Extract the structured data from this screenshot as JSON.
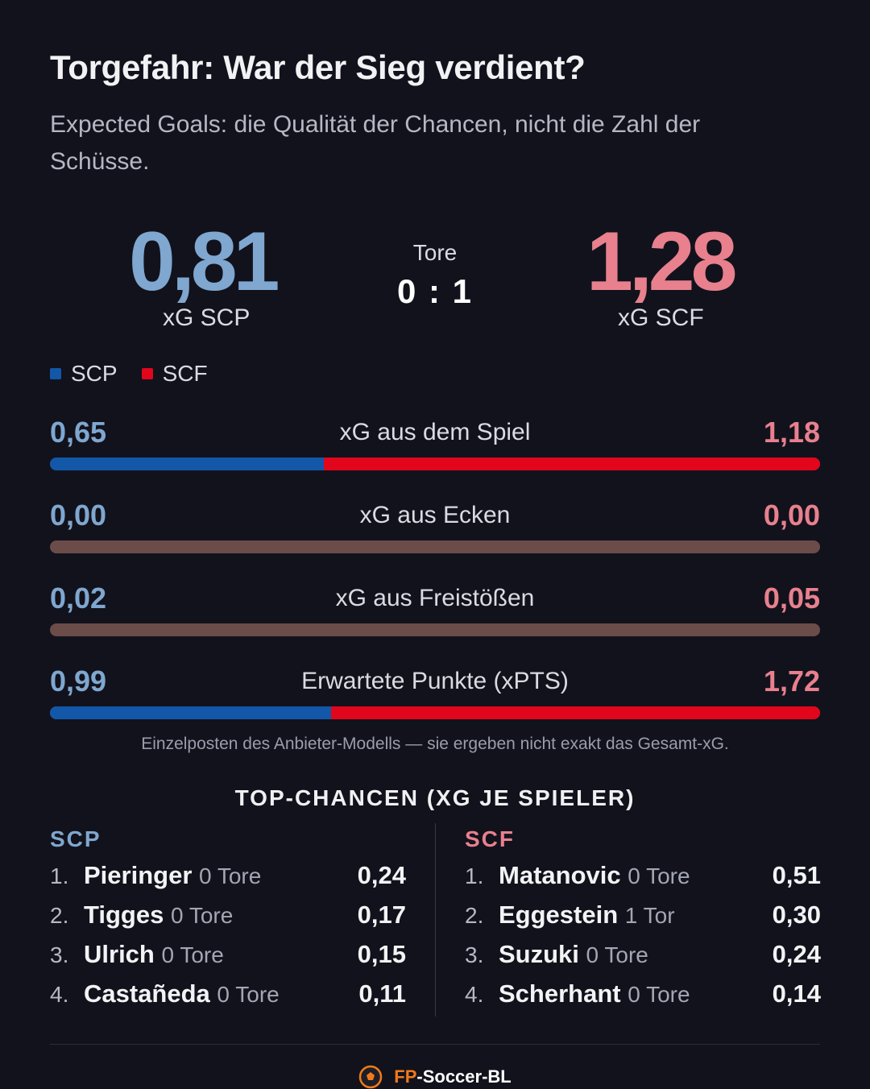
{
  "header": {
    "title": "Torgefahr: War der Sieg verdient?",
    "subtitle": "Expected Goals: die Qualität der Chancen, nicht die Zahl der Schüsse."
  },
  "summary": {
    "home_xg": "0,81",
    "home_label": "xG SCP",
    "away_xg": "1,28",
    "away_label": "xG SCF",
    "score_label": "Tore",
    "score": "0 : 1"
  },
  "legend": [
    {
      "team": "SCP",
      "color": "#1357a8"
    },
    {
      "team": "SCF",
      "color": "#e1061c"
    }
  ],
  "colors": {
    "home": "#1357a8",
    "away": "#e1061c",
    "home_text": "#7fa7cf",
    "away_text": "#e8808e",
    "neutral_bar": "#6b4c49",
    "background": "#12121c"
  },
  "metrics": [
    {
      "label": "xG aus dem Spiel",
      "home": "0,65",
      "away": "1,18",
      "home_val": 0.65,
      "away_val": 1.18
    },
    {
      "label": "xG aus Ecken",
      "home": "0,00",
      "away": "0,00",
      "home_val": 0.0,
      "away_val": 0.0
    },
    {
      "label": "xG aus Freistößen",
      "home": "0,02",
      "away": "0,05",
      "home_val": 0.02,
      "away_val": 0.05,
      "neutral": true
    },
    {
      "label": "Erwartete Punkte (xPTS)",
      "home": "0,99",
      "away": "1,72",
      "home_val": 0.99,
      "away_val": 1.72
    }
  ],
  "footnote": "Einzelposten des Anbieter-Modells — sie ergeben nicht exakt das Gesamt-xG.",
  "top_chances": {
    "title": "TOP-CHANCEN (XG JE SPIELER)",
    "home": {
      "team": "SCP",
      "players": [
        {
          "rank": "1.",
          "name": "Pieringer",
          "goals": "0 Tore",
          "xg": "0,24"
        },
        {
          "rank": "2.",
          "name": "Tigges",
          "goals": "0 Tore",
          "xg": "0,17"
        },
        {
          "rank": "3.",
          "name": "Ulrich",
          "goals": "0 Tore",
          "xg": "0,15"
        },
        {
          "rank": "4.",
          "name": "Castañeda",
          "goals": "0 Tore",
          "xg": "0,11"
        }
      ]
    },
    "away": {
      "team": "SCF",
      "players": [
        {
          "rank": "1.",
          "name": "Matanovic",
          "goals": "0 Tore",
          "xg": "0,51"
        },
        {
          "rank": "2.",
          "name": "Eggestein",
          "goals": "1 Tor",
          "xg": "0,30"
        },
        {
          "rank": "3.",
          "name": "Suzuki",
          "goals": "0 Tore",
          "xg": "0,24"
        },
        {
          "rank": "4.",
          "name": "Scherhant",
          "goals": "0 Tore",
          "xg": "0,14"
        }
      ]
    }
  },
  "brand": {
    "prefix": "FP",
    "suffix": "-Soccer-BL",
    "icon": "football-icon"
  }
}
